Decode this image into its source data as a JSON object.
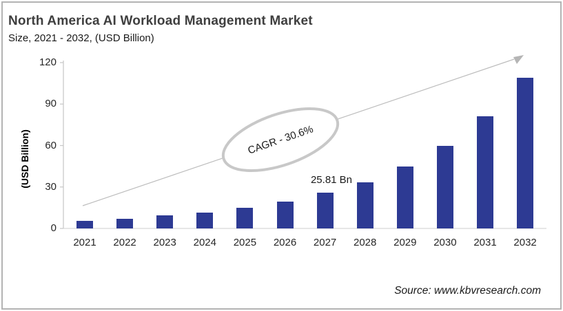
{
  "page": {
    "title": "North America AI Workload Management Market",
    "subtitle": "Size, 2021 - 2032, (USD Billion)",
    "source": "Source: www.kbvresearch.com"
  },
  "chart_data": {
    "type": "bar",
    "title": "North America AI Workload Management Market Size, 2021 - 2032, (USD Billion)",
    "categories": [
      "2021",
      "2022",
      "2023",
      "2024",
      "2025",
      "2026",
      "2027",
      "2028",
      "2029",
      "2030",
      "2031",
      "2032"
    ],
    "values": [
      5.5,
      7,
      9.5,
      11.5,
      15,
      19.5,
      25.81,
      33.5,
      45,
      60,
      81,
      108.8
    ],
    "xlabel": "",
    "ylabel": "(USD Billion)",
    "ylim": [
      0,
      120
    ],
    "y_ticks": [
      0,
      30,
      60,
      90,
      120
    ],
    "grid": false,
    "legend": false,
    "bar_color": "#2d3a93",
    "axis_color": "#c9c9c9",
    "arrow_color": "#bcbcbc",
    "ellipse_stroke": "#c8c8c8",
    "annotations": {
      "cagr_label": "CAGR - 30.6%",
      "value_label": "25.81 Bn",
      "value_label_category": "2027"
    }
  }
}
